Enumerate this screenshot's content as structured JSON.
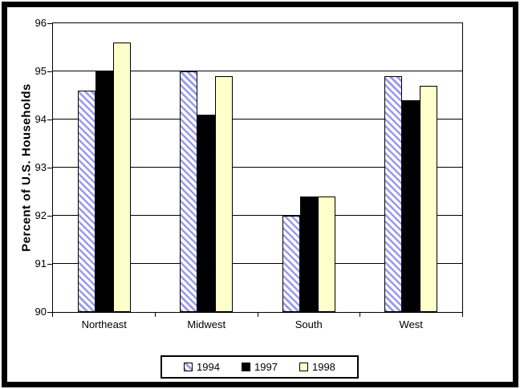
{
  "frame": {
    "border_color": "#000000"
  },
  "chart_data": {
    "type": "bar",
    "title": "",
    "xlabel": "",
    "ylabel": "Percent of U.S. Households",
    "categories": [
      "Northeast",
      "Midwest",
      "South",
      "West"
    ],
    "series": [
      {
        "name": "1994",
        "fill": "hatch",
        "color": "#9999f0",
        "values": [
          94.6,
          95.0,
          92.0,
          94.9
        ]
      },
      {
        "name": "1997",
        "fill": "solid",
        "color": "#000000",
        "values": [
          95.0,
          94.1,
          92.4,
          94.4
        ]
      },
      {
        "name": "1998",
        "fill": "solid",
        "color": "#ffffcc",
        "values": [
          95.6,
          94.9,
          92.4,
          94.7
        ]
      }
    ],
    "ylim": [
      90,
      96
    ],
    "yticks": [
      90,
      91,
      92,
      93,
      94,
      95,
      96
    ],
    "grid": true,
    "gridline_color": "#000000",
    "bar_outline_color": "#000000",
    "legend_position": "bottom-center",
    "plot_background": "#ffffff"
  }
}
